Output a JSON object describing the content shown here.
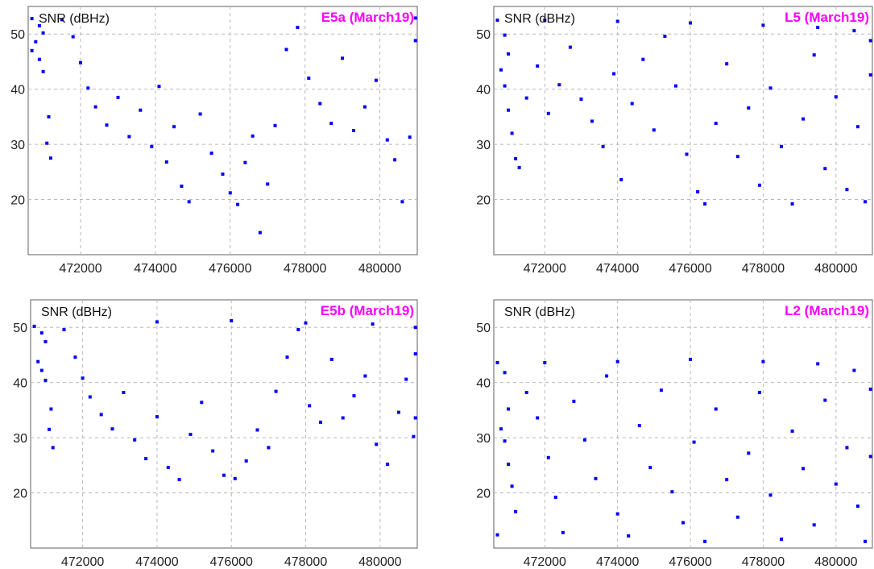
{
  "colors": {
    "marker": "#0000ff",
    "title": "#ff00ff",
    "grid": "#b8b8b8",
    "frame": "#7a7a7a"
  },
  "chart_data": [
    {
      "type": "scatter",
      "title": "E5a (March19)",
      "ylabel": "SNR (dBHz)",
      "xlabel": "",
      "xlim": [
        470600,
        481000
      ],
      "ylim": [
        10,
        55
      ],
      "xticks": [
        472000,
        474000,
        476000,
        478000,
        480000
      ],
      "xtick_labels": [
        "472000",
        "474000",
        "476000",
        "478000",
        "480000"
      ],
      "yticks": [
        20,
        30,
        40,
        50
      ],
      "ytick_labels": [
        "20",
        "30",
        "40",
        "50"
      ],
      "grid": true,
      "series": [
        {
          "values": [
            [
              470700,
              52.8
            ],
            [
              470900,
              51.5
            ],
            [
              471000,
              50.2
            ],
            [
              470800,
              48.6
            ],
            [
              470700,
              47.0
            ],
            [
              470900,
              45.4
            ],
            [
              471000,
              43.2
            ],
            [
              471100,
              30.2
            ],
            [
              471200,
              27.5
            ],
            [
              471150,
              35.0
            ],
            [
              471500,
              52.6
            ],
            [
              471800,
              49.5
            ],
            [
              472000,
              44.8
            ],
            [
              472200,
              40.2
            ],
            [
              472400,
              36.8
            ],
            [
              472700,
              33.5
            ],
            [
              473000,
              38.5
            ],
            [
              473300,
              31.4
            ],
            [
              473600,
              36.2
            ],
            [
              473900,
              29.6
            ],
            [
              474100,
              40.5
            ],
            [
              474300,
              26.8
            ],
            [
              474500,
              33.2
            ],
            [
              474700,
              22.4
            ],
            [
              474900,
              19.6
            ],
            [
              475200,
              35.5
            ],
            [
              475500,
              28.4
            ],
            [
              475800,
              24.6
            ],
            [
              476000,
              21.2
            ],
            [
              476200,
              19.1
            ],
            [
              476400,
              26.7
            ],
            [
              476600,
              31.5
            ],
            [
              476800,
              14.0
            ],
            [
              477000,
              22.8
            ],
            [
              477200,
              33.4
            ],
            [
              477500,
              47.2
            ],
            [
              477800,
              51.2
            ],
            [
              478100,
              42.0
            ],
            [
              478400,
              37.4
            ],
            [
              478700,
              33.8
            ],
            [
              479000,
              45.6
            ],
            [
              479300,
              32.5
            ],
            [
              479600,
              36.8
            ],
            [
              479900,
              41.6
            ],
            [
              480200,
              30.8
            ],
            [
              480400,
              27.2
            ],
            [
              480600,
              19.6
            ],
            [
              480800,
              31.3
            ],
            [
              480950,
              48.8
            ],
            [
              480950,
              52.9
            ]
          ]
        }
      ]
    },
    {
      "type": "scatter",
      "title": "L5 (March19)",
      "ylabel": "SNR (dBHz)",
      "xlabel": "",
      "xlim": [
        470600,
        481000
      ],
      "ylim": [
        10,
        55
      ],
      "xticks": [
        472000,
        474000,
        476000,
        478000,
        480000
      ],
      "xtick_labels": [
        "472000",
        "474000",
        "476000",
        "478000",
        "480000"
      ],
      "yticks": [
        20,
        30,
        40,
        50
      ],
      "ytick_labels": [
        "20",
        "30",
        "40",
        "50"
      ],
      "grid": true,
      "series": [
        {
          "values": [
            [
              470700,
              52.5
            ],
            [
              470900,
              49.8
            ],
            [
              471000,
              46.4
            ],
            [
              470800,
              43.5
            ],
            [
              470900,
              40.6
            ],
            [
              471000,
              36.2
            ],
            [
              471100,
              32.0
            ],
            [
              471200,
              27.4
            ],
            [
              471300,
              25.8
            ],
            [
              471500,
              38.4
            ],
            [
              471800,
              44.2
            ],
            [
              472100,
              35.6
            ],
            [
              472400,
              40.8
            ],
            [
              472700,
              47.6
            ],
            [
              473000,
              38.2
            ],
            [
              473300,
              34.2
            ],
            [
              473600,
              29.6
            ],
            [
              473900,
              42.8
            ],
            [
              474100,
              23.6
            ],
            [
              474400,
              37.4
            ],
            [
              474700,
              45.4
            ],
            [
              475000,
              32.6
            ],
            [
              475300,
              49.6
            ],
            [
              475600,
              40.6
            ],
            [
              475900,
              28.2
            ],
            [
              476200,
              21.4
            ],
            [
              476400,
              19.2
            ],
            [
              476700,
              33.8
            ],
            [
              477000,
              44.6
            ],
            [
              477300,
              27.8
            ],
            [
              477600,
              36.6
            ],
            [
              477900,
              22.6
            ],
            [
              478200,
              40.2
            ],
            [
              478500,
              29.6
            ],
            [
              478800,
              19.2
            ],
            [
              479100,
              34.6
            ],
            [
              479400,
              46.2
            ],
            [
              479700,
              25.6
            ],
            [
              480000,
              38.6
            ],
            [
              480300,
              21.8
            ],
            [
              480600,
              33.2
            ],
            [
              480800,
              19.6
            ],
            [
              480950,
              42.6
            ],
            [
              480950,
              48.8
            ],
            [
              480500,
              50.6
            ],
            [
              479500,
              51.2
            ],
            [
              478000,
              51.6
            ],
            [
              476000,
              52.0
            ],
            [
              474000,
              52.3
            ],
            [
              472000,
              52.5
            ]
          ]
        }
      ]
    },
    {
      "type": "scatter",
      "title": "E5b (March19)",
      "ylabel": "SNR (dBHz)",
      "xlabel": "",
      "xlim": [
        470600,
        481000
      ],
      "ylim": [
        10,
        55
      ],
      "xticks": [
        472000,
        474000,
        476000,
        478000,
        480000
      ],
      "xtick_labels": [
        "472000",
        "474000",
        "476000",
        "478000",
        "480000"
      ],
      "yticks": [
        20,
        30,
        40,
        50
      ],
      "ytick_labels": [
        "20",
        "30",
        "40",
        "50"
      ],
      "grid": true,
      "series": [
        {
          "values": [
            [
              470700,
              50.2
            ],
            [
              470900,
              49.0
            ],
            [
              471000,
              47.4
            ],
            [
              470800,
              43.8
            ],
            [
              470900,
              42.2
            ],
            [
              471000,
              40.4
            ],
            [
              471100,
              31.5
            ],
            [
              471200,
              28.2
            ],
            [
              471150,
              35.2
            ],
            [
              471500,
              49.6
            ],
            [
              471800,
              44.6
            ],
            [
              472000,
              40.8
            ],
            [
              472200,
              37.4
            ],
            [
              472500,
              34.2
            ],
            [
              472800,
              31.6
            ],
            [
              473100,
              38.2
            ],
            [
              473400,
              29.6
            ],
            [
              473700,
              26.2
            ],
            [
              474000,
              33.8
            ],
            [
              474300,
              24.6
            ],
            [
              474600,
              22.4
            ],
            [
              474900,
              30.6
            ],
            [
              475200,
              36.4
            ],
            [
              475500,
              27.6
            ],
            [
              475800,
              23.2
            ],
            [
              476100,
              22.6
            ],
            [
              476400,
              25.8
            ],
            [
              476700,
              31.4
            ],
            [
              477000,
              28.2
            ],
            [
              477200,
              38.4
            ],
            [
              477500,
              44.6
            ],
            [
              477800,
              49.6
            ],
            [
              478100,
              35.8
            ],
            [
              478400,
              32.8
            ],
            [
              478700,
              44.2
            ],
            [
              479000,
              33.6
            ],
            [
              479300,
              37.6
            ],
            [
              479600,
              41.2
            ],
            [
              479900,
              28.8
            ],
            [
              480200,
              25.2
            ],
            [
              480500,
              34.6
            ],
            [
              480700,
              40.6
            ],
            [
              480900,
              30.2
            ],
            [
              480950,
              33.6
            ],
            [
              480950,
              45.2
            ],
            [
              480950,
              50.0
            ],
            [
              479800,
              50.6
            ],
            [
              478000,
              50.8
            ],
            [
              476000,
              51.2
            ],
            [
              474000,
              51.0
            ]
          ]
        }
      ]
    },
    {
      "type": "scatter",
      "title": "L2 (March19)",
      "ylabel": "SNR (dBHz)",
      "xlabel": "",
      "xlim": [
        470600,
        481000
      ],
      "ylim": [
        10,
        55
      ],
      "xticks": [
        472000,
        474000,
        476000,
        478000,
        480000
      ],
      "xtick_labels": [
        "472000",
        "474000",
        "476000",
        "478000",
        "480000"
      ],
      "yticks": [
        20,
        30,
        40,
        50
      ],
      "ytick_labels": [
        "20",
        "30",
        "40",
        "50"
      ],
      "grid": true,
      "series": [
        {
          "values": [
            [
              470700,
              43.6
            ],
            [
              470900,
              41.8
            ],
            [
              471000,
              35.2
            ],
            [
              470800,
              31.6
            ],
            [
              470900,
              29.4
            ],
            [
              471000,
              25.2
            ],
            [
              471100,
              21.2
            ],
            [
              471200,
              16.6
            ],
            [
              470700,
              12.4
            ],
            [
              471500,
              38.2
            ],
            [
              471800,
              33.6
            ],
            [
              472100,
              26.4
            ],
            [
              472300,
              19.2
            ],
            [
              472500,
              12.8
            ],
            [
              472800,
              36.6
            ],
            [
              473100,
              29.6
            ],
            [
              473400,
              22.6
            ],
            [
              473700,
              41.2
            ],
            [
              474000,
              16.2
            ],
            [
              474300,
              12.2
            ],
            [
              474600,
              32.2
            ],
            [
              474900,
              24.6
            ],
            [
              475200,
              38.6
            ],
            [
              475500,
              20.2
            ],
            [
              475800,
              14.6
            ],
            [
              476100,
              29.2
            ],
            [
              476400,
              11.2
            ],
            [
              476700,
              35.2
            ],
            [
              477000,
              22.4
            ],
            [
              477300,
              15.6
            ],
            [
              477600,
              27.2
            ],
            [
              477900,
              38.2
            ],
            [
              478200,
              19.6
            ],
            [
              478500,
              11.6
            ],
            [
              478800,
              31.2
            ],
            [
              479100,
              24.4
            ],
            [
              479400,
              14.2
            ],
            [
              479700,
              36.8
            ],
            [
              480000,
              21.6
            ],
            [
              480300,
              28.2
            ],
            [
              480600,
              17.6
            ],
            [
              480800,
              11.2
            ],
            [
              480950,
              26.6
            ],
            [
              480950,
              38.8
            ],
            [
              480500,
              42.2
            ],
            [
              479500,
              43.4
            ],
            [
              478000,
              43.8
            ],
            [
              476000,
              44.2
            ],
            [
              474000,
              43.8
            ],
            [
              472000,
              43.6
            ]
          ]
        }
      ]
    }
  ]
}
